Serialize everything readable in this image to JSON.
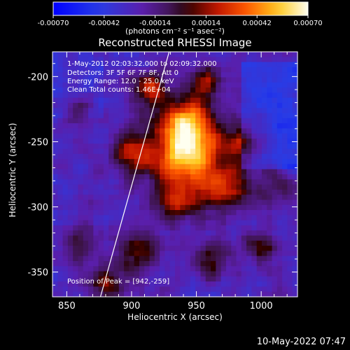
{
  "colorbar": {
    "ticks": [
      "-0.00070",
      "-0.00042",
      "-0.00014",
      "0.00014",
      "0.00042",
      "0.00070"
    ],
    "units": "(photons cm⁻² s⁻¹ asec⁻²)"
  },
  "plot": {
    "title": "Reconstructed RHESSI Image",
    "info_lines": [
      "1-May-2012 02:03:32.000 to 02:09:32.000",
      "Detectors: 3F 5F 6F 7F 8F, Att 0",
      "Energy Range: 12.0 - 25.0 keV",
      "Clean    Total counts: 1.46E+04"
    ],
    "peak_text": "Position of Peak = [942,-259]"
  },
  "footer": {
    "timestamp": "10-May-2022 07:47"
  },
  "chart_data": {
    "type": "heatmap",
    "title": "Reconstructed RHESSI Image",
    "xlabel": "Heliocentric X (arcsec)",
    "ylabel": "Heliocentric Y (arcsec)",
    "xlim": [
      839,
      1028
    ],
    "ylim": [
      -369,
      -181
    ],
    "xticks": [
      850,
      900,
      950,
      1000
    ],
    "yticks": [
      -200,
      -250,
      -300,
      -350
    ],
    "colorbar_range": [
      -0.0007,
      0.0007
    ],
    "colormap": "blue-purple-red-yellow-white",
    "peak_position": [
      942,
      -259
    ],
    "limb_line": [
      [
        876,
        -369
      ],
      [
        929,
        -181
      ]
    ],
    "sources": [
      {
        "x": 942,
        "y": -259,
        "amp": 1.0,
        "r": 18
      },
      {
        "x": 944,
        "y": -236,
        "amp": 0.75,
        "r": 14
      },
      {
        "x": 915,
        "y": -210,
        "amp": 0.65,
        "r": 10
      },
      {
        "x": 955,
        "y": -205,
        "amp": 0.55,
        "r": 9
      },
      {
        "x": 900,
        "y": -258,
        "amp": 0.6,
        "r": 12
      },
      {
        "x": 972,
        "y": -285,
        "amp": 0.65,
        "r": 14
      },
      {
        "x": 935,
        "y": -295,
        "amp": 0.55,
        "r": 12
      },
      {
        "x": 985,
        "y": -250,
        "amp": 0.5,
        "r": 10
      },
      {
        "x": 905,
        "y": -335,
        "amp": 0.45,
        "r": 12
      },
      {
        "x": 960,
        "y": -340,
        "amp": 0.45,
        "r": 10
      },
      {
        "x": 1000,
        "y": -330,
        "amp": 0.4,
        "r": 9
      },
      {
        "x": 860,
        "y": -330,
        "amp": 0.35,
        "r": 10
      },
      {
        "x": 880,
        "y": -360,
        "amp": 0.5,
        "r": 10
      },
      {
        "x": 860,
        "y": -225,
        "amp": 0.3,
        "r": 8
      },
      {
        "x": 1010,
        "y": -285,
        "amp": 0.3,
        "r": 10
      }
    ]
  }
}
